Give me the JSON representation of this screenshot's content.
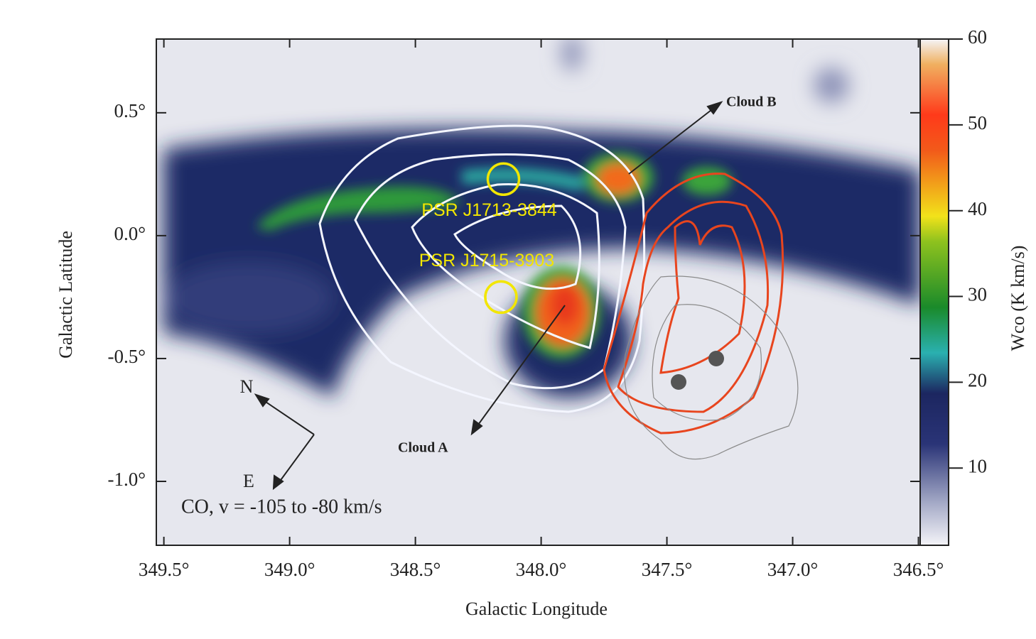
{
  "chart_data": {
    "type": "map",
    "x_label": "Galactic Longitude",
    "y_label": "Galactic Latitude",
    "colorbar_label": "Wco (K km/s)",
    "xlim": [
      349.53,
      346.38
    ],
    "xticks": [
      {
        "value": 349.5,
        "label": "349.5°"
      },
      {
        "value": 349.0,
        "label": "349.0°"
      },
      {
        "value": 348.5,
        "label": "348.5°"
      },
      {
        "value": 348.0,
        "label": "348.0°"
      },
      {
        "value": 347.5,
        "label": "347.5°"
      },
      {
        "value": 347.0,
        "label": "347.0°"
      },
      {
        "value": 346.5,
        "label": "346.5°"
      }
    ],
    "ylim": [
      -1.26,
      0.8
    ],
    "yticks": [
      {
        "value": 0.5,
        "label": "0.5°"
      },
      {
        "value": 0.0,
        "label": "0.0°"
      },
      {
        "value": -0.5,
        "label": "-0.5°"
      },
      {
        "value": -1.0,
        "label": "-1.0°"
      }
    ],
    "clim": [
      1,
      60
    ],
    "cticks": [
      10,
      20,
      30,
      40,
      50,
      60
    ],
    "sources": [
      {
        "name": "PSR J1713-3844",
        "l": 348.15,
        "b": 0.23,
        "color": "#f2e600"
      },
      {
        "name": "PSR J1715-3903",
        "l": 348.16,
        "b": -0.25,
        "color": "#f2e600"
      }
    ],
    "annotations": [
      "Cloud B",
      "Cloud A",
      "N",
      "E",
      "CO, v = -105 to -80 km/s"
    ]
  }
}
